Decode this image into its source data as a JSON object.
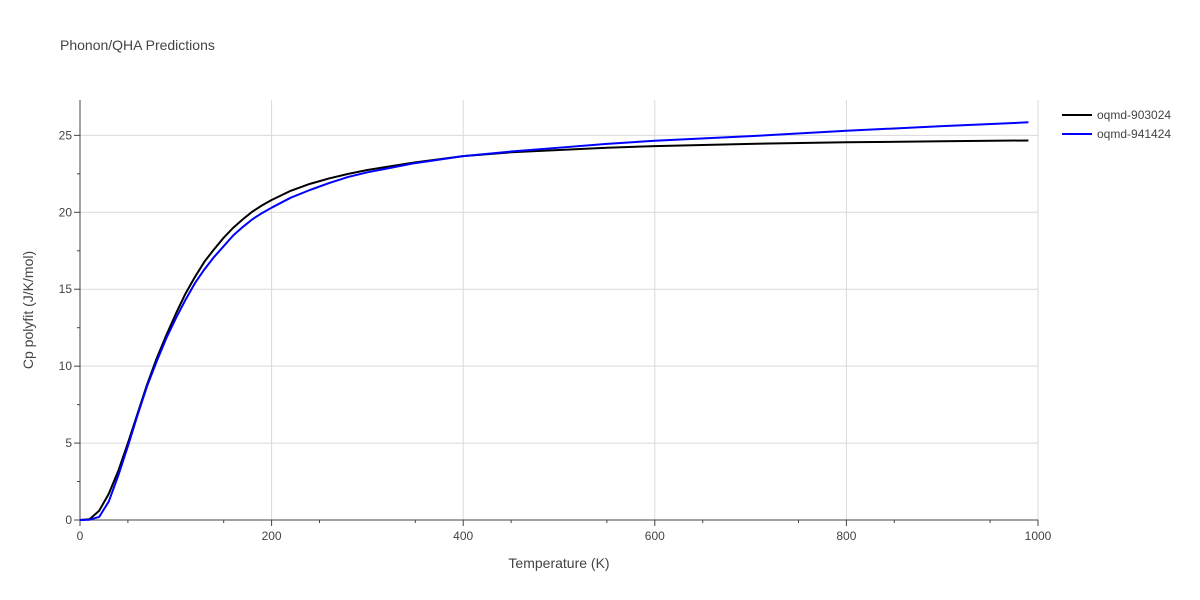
{
  "chart_data": {
    "type": "line",
    "title": "Phonon/QHA Predictions",
    "xlabel": "Temperature (K)",
    "ylabel": "Cp polyfit (J/K/mol)",
    "xlim": [
      0,
      1000
    ],
    "ylim": [
      0,
      27.3
    ],
    "x_ticks": [
      0,
      200,
      400,
      600,
      800,
      1000
    ],
    "y_ticks": [
      0,
      5,
      10,
      15,
      20,
      25
    ],
    "grid": true,
    "legend_position": "top-right",
    "series": [
      {
        "name": "oqmd-903024",
        "color": "#000000",
        "x": [
          0,
          10,
          20,
          30,
          40,
          50,
          60,
          70,
          80,
          90,
          100,
          110,
          120,
          130,
          140,
          150,
          160,
          170,
          180,
          190,
          200,
          220,
          240,
          260,
          280,
          300,
          350,
          400,
          450,
          500,
          550,
          600,
          700,
          800,
          900,
          990
        ],
        "y": [
          0,
          0.05,
          0.6,
          1.7,
          3.2,
          5.0,
          6.9,
          8.8,
          10.5,
          12.0,
          13.4,
          14.7,
          15.8,
          16.8,
          17.6,
          18.35,
          19.0,
          19.55,
          20.05,
          20.45,
          20.8,
          21.4,
          21.85,
          22.2,
          22.5,
          22.75,
          23.25,
          23.65,
          23.9,
          24.05,
          24.2,
          24.3,
          24.45,
          24.55,
          24.62,
          24.67
        ]
      },
      {
        "name": "oqmd-941424",
        "color": "#0000ff",
        "x": [
          0,
          10,
          20,
          30,
          40,
          50,
          60,
          70,
          80,
          90,
          100,
          110,
          120,
          130,
          140,
          150,
          160,
          170,
          180,
          190,
          200,
          220,
          240,
          260,
          280,
          300,
          350,
          400,
          450,
          500,
          550,
          600,
          700,
          800,
          900,
          990
        ],
        "y": [
          0,
          0.02,
          0.2,
          1.2,
          2.9,
          4.8,
          6.8,
          8.7,
          10.3,
          11.8,
          13.1,
          14.3,
          15.4,
          16.3,
          17.1,
          17.8,
          18.5,
          19.05,
          19.55,
          19.95,
          20.3,
          20.95,
          21.45,
          21.9,
          22.3,
          22.6,
          23.2,
          23.65,
          23.95,
          24.2,
          24.45,
          24.65,
          24.95,
          25.3,
          25.6,
          25.85
        ]
      }
    ]
  }
}
